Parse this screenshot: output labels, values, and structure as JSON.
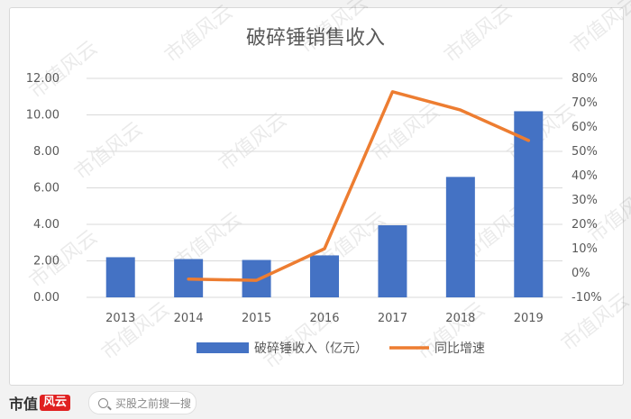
{
  "watermark_text": "市值风云",
  "brand": {
    "name": "市值",
    "mark": "风云"
  },
  "search": {
    "placeholder": "买股之前搜一搜"
  },
  "colors": {
    "bar": "#4472c4",
    "line": "#ed7d31",
    "axis_text": "#595959",
    "grid": "#d9d9d9"
  },
  "chart_data": {
    "type": "bar",
    "title": "破碎锤销售收入",
    "categories": [
      "2013",
      "2014",
      "2015",
      "2016",
      "2017",
      "2018",
      "2019"
    ],
    "series": [
      {
        "name": "破碎锤收入（亿元）",
        "type": "bar",
        "axis": "left",
        "values": [
          2.2,
          2.1,
          2.05,
          2.3,
          3.95,
          6.6,
          10.2
        ]
      },
      {
        "name": "同比增速",
        "type": "line",
        "axis": "right",
        "values": [
          null,
          -2.5,
          -3.0,
          10.0,
          74.5,
          67.0,
          54.5
        ]
      }
    ],
    "y_left": {
      "min": 0,
      "max": 12,
      "step": 2,
      "tick_labels": [
        "0.00",
        "2.00",
        "4.00",
        "6.00",
        "8.00",
        "10.00",
        "12.00"
      ]
    },
    "y_right": {
      "min": -10,
      "max": 80,
      "step": 10,
      "tick_labels": [
        "-10%",
        "0%",
        "10%",
        "20%",
        "30%",
        "40%",
        "50%",
        "60%",
        "70%",
        "80%"
      ]
    },
    "grid": true,
    "legend": "bottom"
  }
}
